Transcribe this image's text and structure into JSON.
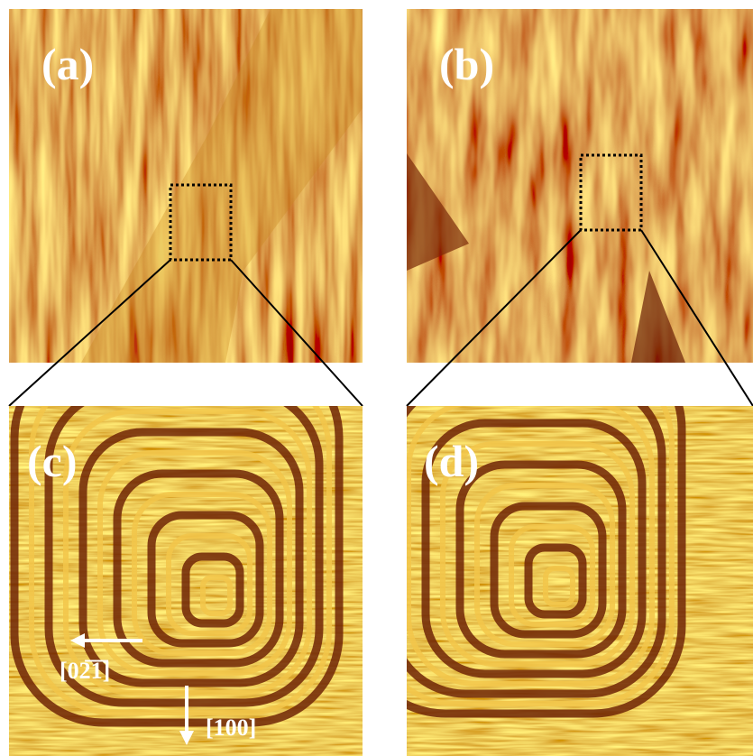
{
  "panels": [
    {
      "label": "(a)"
    },
    {
      "label": "(b)"
    },
    {
      "label": "(c)"
    },
    {
      "label": "(d)"
    }
  ],
  "annotations": {
    "direction_1": "[02̅1̅]",
    "direction_2": "[100]"
  }
}
